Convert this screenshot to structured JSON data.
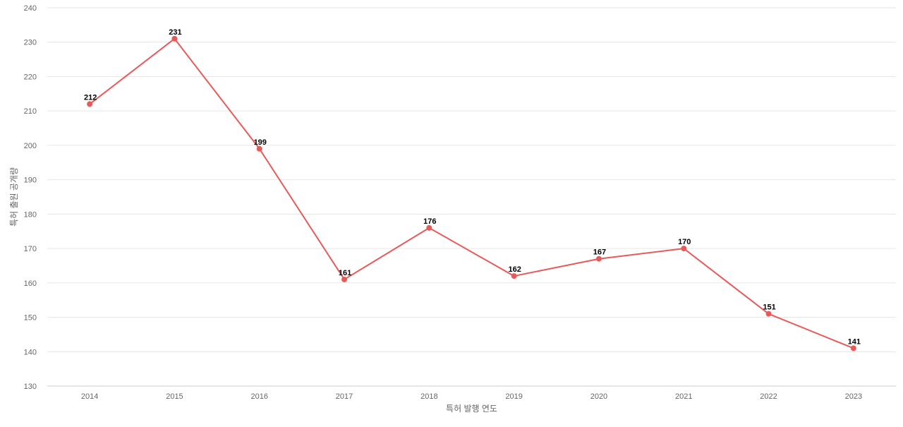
{
  "chart_data": {
    "type": "line",
    "title": "",
    "xlabel": "특허 발행 연도",
    "ylabel": "특허 출원 공개량",
    "categories": [
      "2014",
      "2015",
      "2016",
      "2017",
      "2018",
      "2019",
      "2020",
      "2021",
      "2022",
      "2023"
    ],
    "series": [
      {
        "values": [
          212,
          231,
          199,
          161,
          176,
          162,
          167,
          170,
          151,
          141
        ],
        "color": "#e85a5a"
      }
    ],
    "ylim": [
      130,
      240
    ],
    "yticks": [
      130,
      140,
      150,
      160,
      170,
      180,
      190,
      200,
      210,
      220,
      230,
      240
    ],
    "grid": true,
    "legend": "none",
    "data_labels": true
  }
}
